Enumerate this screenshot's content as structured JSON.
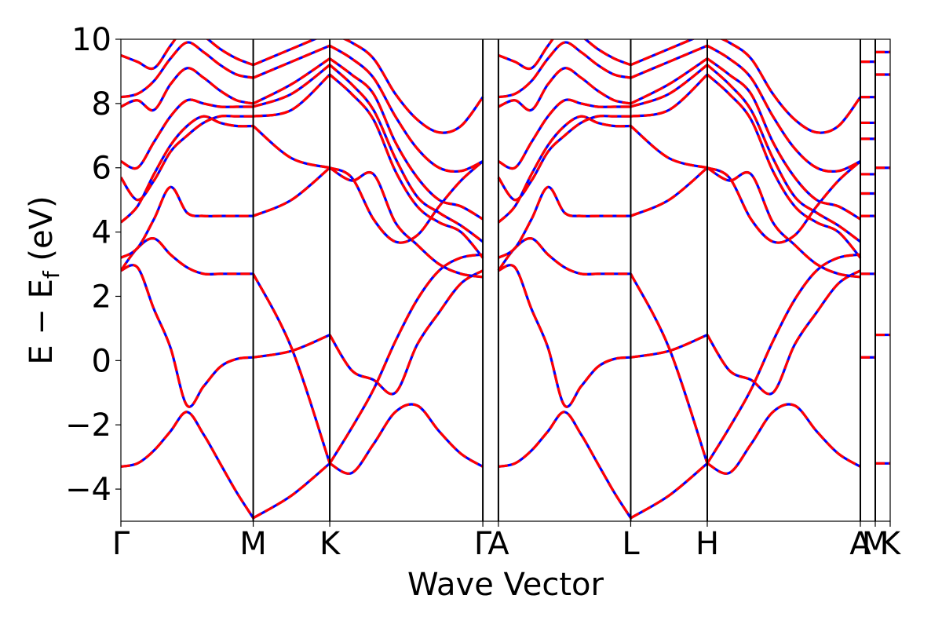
{
  "chart_data": {
    "type": "line",
    "xlabel": "Wave Vector",
    "ylabel_main": "E − E",
    "ylabel_sub": "f",
    "ylabel_unit": " (eV)",
    "ylim": [
      -5,
      10
    ],
    "yticks": [
      -4,
      -2,
      0,
      2,
      4,
      6,
      8,
      10
    ],
    "ytick_labels": [
      "−4",
      "−2",
      "0",
      "2",
      "4",
      "6",
      "8",
      "10"
    ],
    "grid": false,
    "legend": "none",
    "colors": {
      "dft_solid": "#0000ff",
      "fit_dashed": "#ff0000"
    },
    "kpath": {
      "ticks": [
        0,
        2.04,
        3.22,
        5.58,
        5.82,
        7.86,
        9.04,
        11.4,
        11.63,
        11.86
      ],
      "labels": [
        "Γ",
        "M",
        "K",
        "Γ",
        "A",
        "L",
        "H",
        "A",
        "M",
        "K"
      ],
      "segments": [
        {
          "from": "Γ",
          "to": "M",
          "start": 0,
          "end": 2.04
        },
        {
          "from": "M",
          "to": "K",
          "start": 2.04,
          "end": 3.22
        },
        {
          "from": "K",
          "to": "Γ",
          "start": 3.22,
          "end": 5.58
        },
        {
          "from": "A",
          "to": "L",
          "start": 5.82,
          "end": 7.86
        },
        {
          "from": "L",
          "to": "H",
          "start": 7.86,
          "end": 9.04
        },
        {
          "from": "H",
          "to": "A",
          "start": 9.04,
          "end": 11.4
        }
      ],
      "flat_segments": [
        {
          "from": "L",
          "to": "M",
          "start": 11.4,
          "end": 11.63
        },
        {
          "from": "H",
          "to": "K",
          "start": 11.63,
          "end": 11.86
        }
      ]
    },
    "bands": [
      {
        "name": "band-1",
        "gamma_m": [
          -3.3,
          -3.2,
          -2.8,
          -2.2,
          -1.6,
          -2.3,
          -3.2,
          -4.1,
          -4.9
        ],
        "m_k": [
          -4.9,
          -4.2,
          -3.2
        ],
        "k_gamma": [
          -3.2,
          -3.5,
          -2.6,
          -1.6,
          -1.4,
          -2.2,
          -2.9,
          -3.3
        ]
      },
      {
        "name": "band-2",
        "gamma_m": [
          2.8,
          2.9,
          1.6,
          0.4,
          -1.4,
          -0.8,
          -0.2,
          0.05,
          0.1
        ],
        "m_k": [
          0.1,
          0.3,
          0.8
        ],
        "k_gamma": [
          0.8,
          -0.3,
          -0.6,
          -1.0,
          0.5,
          1.5,
          2.4,
          2.8
        ]
      },
      {
        "name": "band-3",
        "gamma_m": [
          2.8,
          3.5,
          3.8,
          3.3,
          2.9,
          2.7,
          2.7,
          2.7,
          2.7
        ],
        "m_k": [
          2.7,
          0.4,
          -3.2
        ],
        "k_gamma": [
          -3.2,
          -2.1,
          -0.9,
          0.6,
          1.9,
          2.8,
          3.2,
          3.3
        ]
      },
      {
        "name": "band-4",
        "gamma_m": [
          3.2,
          3.5,
          4.4,
          5.4,
          4.6,
          4.5,
          4.5,
          4.5,
          4.5
        ],
        "m_k": [
          4.5,
          5.0,
          6.0
        ],
        "k_gamma": [
          6.0,
          5.6,
          5.8,
          4.3,
          3.6,
          3.0,
          2.7,
          2.6
        ]
      },
      {
        "name": "band-5",
        "gamma_m": [
          4.3,
          4.8,
          5.8,
          6.7,
          7.3,
          7.6,
          7.4,
          7.3,
          7.3
        ],
        "m_k": [
          7.3,
          6.3,
          6.0
        ],
        "k_gamma": [
          6.0,
          5.7,
          4.4,
          3.7,
          3.9,
          4.8,
          5.6,
          6.2
        ]
      },
      {
        "name": "band-6",
        "gamma_m": [
          5.7,
          5.0,
          5.6,
          6.5,
          7.0,
          7.4,
          7.6,
          7.6,
          7.6
        ],
        "m_k": [
          7.6,
          7.8,
          8.9
        ],
        "k_gamma": [
          8.9,
          8.3,
          7.5,
          5.9,
          4.8,
          4.3,
          4.0,
          3.2
        ]
      },
      {
        "name": "band-7",
        "gamma_m": [
          6.2,
          6.0,
          6.8,
          7.6,
          8.1,
          8.0,
          7.9,
          7.9,
          7.9
        ],
        "m_k": [
          7.9,
          8.3,
          9.2
        ],
        "k_gamma": [
          9.2,
          8.6,
          7.8,
          6.3,
          5.1,
          4.6,
          4.2,
          3.7
        ]
      },
      {
        "name": "band-8",
        "gamma_m": [
          7.9,
          8.1,
          7.8,
          8.6,
          9.1,
          8.8,
          8.4,
          8.1,
          8.0
        ],
        "m_k": [
          8.0,
          8.6,
          9.4
        ],
        "k_gamma": [
          9.4,
          8.9,
          8.3,
          6.8,
          5.7,
          5.0,
          4.8,
          4.4
        ]
      },
      {
        "name": "band-9",
        "gamma_m": [
          8.2,
          8.3,
          8.7,
          9.4,
          9.9,
          9.6,
          9.2,
          8.9,
          8.8
        ],
        "m_k": [
          8.8,
          9.3,
          9.8
        ],
        "k_gamma": [
          9.8,
          9.4,
          8.8,
          7.6,
          6.6,
          6.0,
          5.9,
          6.2
        ]
      },
      {
        "name": "band-10",
        "gamma_m": [
          9.5,
          9.3,
          9.1,
          9.8,
          10.4,
          10.1,
          9.7,
          9.4,
          9.2
        ],
        "m_k": [
          9.2,
          9.7,
          10.2
        ],
        "k_gamma": [
          10.2,
          9.9,
          9.4,
          8.3,
          7.5,
          7.1,
          7.3,
          8.2
        ]
      }
    ],
    "flat_levels_lm": [
      0.1,
      2.7,
      4.5,
      5.2,
      5.8,
      6.9,
      7.4,
      8.2,
      9.3
    ],
    "flat_levels_hk": [
      -3.2,
      0.8,
      6.0,
      8.9,
      9.6
    ]
  }
}
